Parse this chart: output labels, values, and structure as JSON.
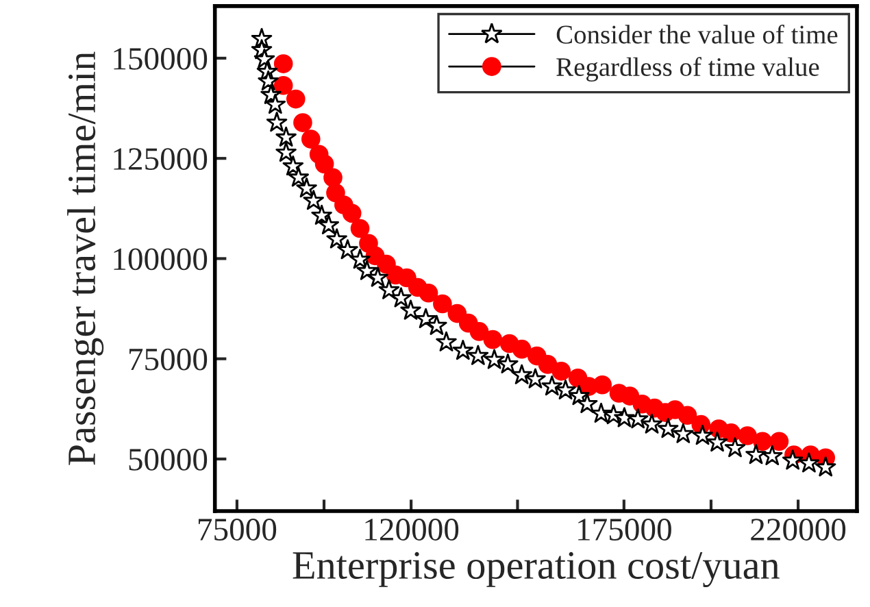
{
  "chart_data": {
    "type": "scatter",
    "xlabel": "Enterprise operation cost/yuan",
    "ylabel": "Passenger travel time/min",
    "xlim": [
      69300,
      235200
    ],
    "ylim": [
      37000,
      163000
    ],
    "xticks": [
      75000,
      {
        "value": 97500,
        "label": null
      },
      120000,
      {
        "value": 147500,
        "label": null
      },
      175000,
      {
        "value": 197500,
        "label": null
      },
      220000
    ],
    "yticks": [
      50000,
      75000,
      100000,
      125000,
      150000
    ],
    "grid": false,
    "legend": "top right",
    "series": [
      {
        "name": "Consider the value of time",
        "color": "#000000",
        "marker": "star",
        "x": [
          81400,
          81400,
          82100,
          82800,
          83100,
          83800,
          84900,
          85300,
          87700,
          87700,
          89500,
          90900,
          93000,
          94800,
          96900,
          98700,
          100800,
          103600,
          106800,
          108600,
          111400,
          114300,
          117400,
          119900,
          123800,
          126600,
          129100,
          133400,
          137300,
          141500,
          145000,
          148600,
          152100,
          156400,
          159900,
          163400,
          165500,
          169100,
          172300,
          175100,
          178600,
          182200,
          186400,
          190300,
          195300,
          199100,
          203700,
          209100,
          213300,
          218600,
          222800,
          227100
        ],
        "values": [
          154800,
          152000,
          149700,
          146600,
          144200,
          140800,
          138400,
          133900,
          130200,
          126400,
          123000,
          120200,
          117500,
          114400,
          110700,
          108300,
          104800,
          102100,
          99700,
          96900,
          95200,
          92100,
          90100,
          87000,
          84900,
          83200,
          79100,
          77000,
          75700,
          74700,
          73600,
          70900,
          69900,
          68100,
          67100,
          65700,
          63700,
          61300,
          60900,
          60200,
          59900,
          58600,
          57500,
          56200,
          55800,
          54100,
          52700,
          51000,
          50700,
          49600,
          48900,
          47900
        ]
      },
      {
        "name": "Regardless of time value",
        "color": "#ff0000",
        "marker": "circle",
        "x": [
          87000,
          87000,
          90200,
          92000,
          94100,
          96200,
          97600,
          99800,
          100500,
          102600,
          104700,
          106800,
          109000,
          110700,
          113600,
          116000,
          118900,
          121700,
          124500,
          128100,
          131900,
          134800,
          137600,
          141100,
          145400,
          148600,
          152500,
          155300,
          158800,
          163100,
          165900,
          169400,
          173700,
          176500,
          179700,
          182900,
          185700,
          188200,
          191400,
          194900,
          199500,
          202700,
          206900,
          210800,
          215100,
          218900,
          223200,
          227100
        ],
        "values": [
          148600,
          143200,
          139800,
          133900,
          129800,
          126000,
          123600,
          120200,
          116400,
          113400,
          111300,
          107500,
          103800,
          100700,
          98600,
          95900,
          95200,
          92800,
          91400,
          88700,
          86300,
          83900,
          81800,
          79800,
          78800,
          77400,
          75700,
          73600,
          71900,
          70200,
          68100,
          68500,
          66400,
          65700,
          63700,
          62700,
          61600,
          62300,
          60900,
          58600,
          57500,
          56500,
          55800,
          54400,
          54400,
          51000,
          51000,
          50300
        ]
      }
    ]
  }
}
